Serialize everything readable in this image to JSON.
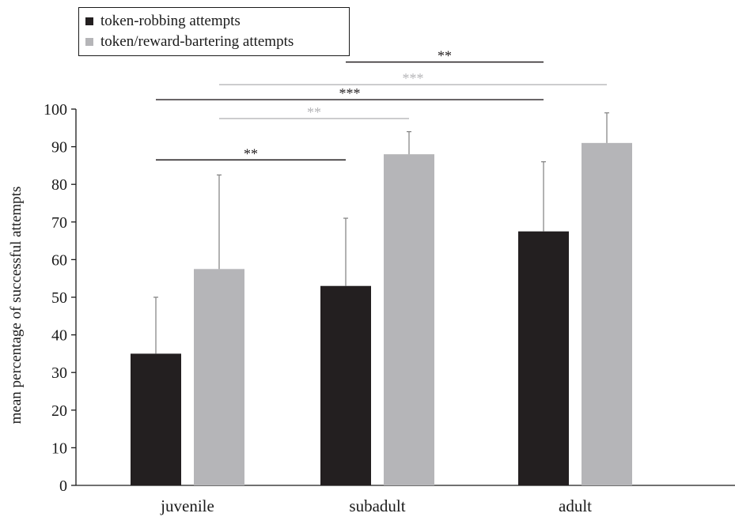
{
  "chart_data": {
    "type": "bar",
    "categories": [
      "juvenile",
      "subadult",
      "adult"
    ],
    "series": [
      {
        "name": "token-robbing attempts",
        "color": "#231f20",
        "values": [
          35,
          53,
          67.5
        ],
        "error": [
          15,
          18,
          18.5
        ]
      },
      {
        "name": "token/reward-bartering attempts",
        "color": "#b5b5b8",
        "values": [
          57.5,
          88,
          91
        ],
        "error": [
          25,
          6,
          8
        ]
      }
    ],
    "ylabel": "mean percentage of successful attempts",
    "xlabel": "",
    "ylim": [
      0,
      100
    ],
    "yticks": [
      0,
      10,
      20,
      30,
      40,
      50,
      60,
      70,
      80,
      90,
      100
    ],
    "grid": false,
    "legend_position": "top-left",
    "significance": [
      {
        "label": "**",
        "from": "juvenile:token-robbing attempts",
        "to": "subadult:token-robbing attempts",
        "y": 86.5,
        "color": "#231f20"
      },
      {
        "label": "**",
        "from": "juvenile:token/reward-bartering attempts",
        "to": "subadult:token/reward-bartering attempts",
        "y": 97.5,
        "color": "#b5b5b8"
      },
      {
        "label": "***",
        "from": "juvenile:token-robbing attempts",
        "to": "adult:token-robbing attempts",
        "y": 102.5,
        "color": "#231f20"
      },
      {
        "label": "***",
        "from": "juvenile:token/reward-bartering attempts",
        "to": "adult:token/reward-bartering attempts",
        "y": 106.5,
        "color": "#b5b5b8"
      },
      {
        "label": "**",
        "from": "subadult:token-robbing attempts",
        "to": "adult:token-robbing attempts",
        "y": 112.5,
        "color": "#231f20"
      }
    ]
  }
}
